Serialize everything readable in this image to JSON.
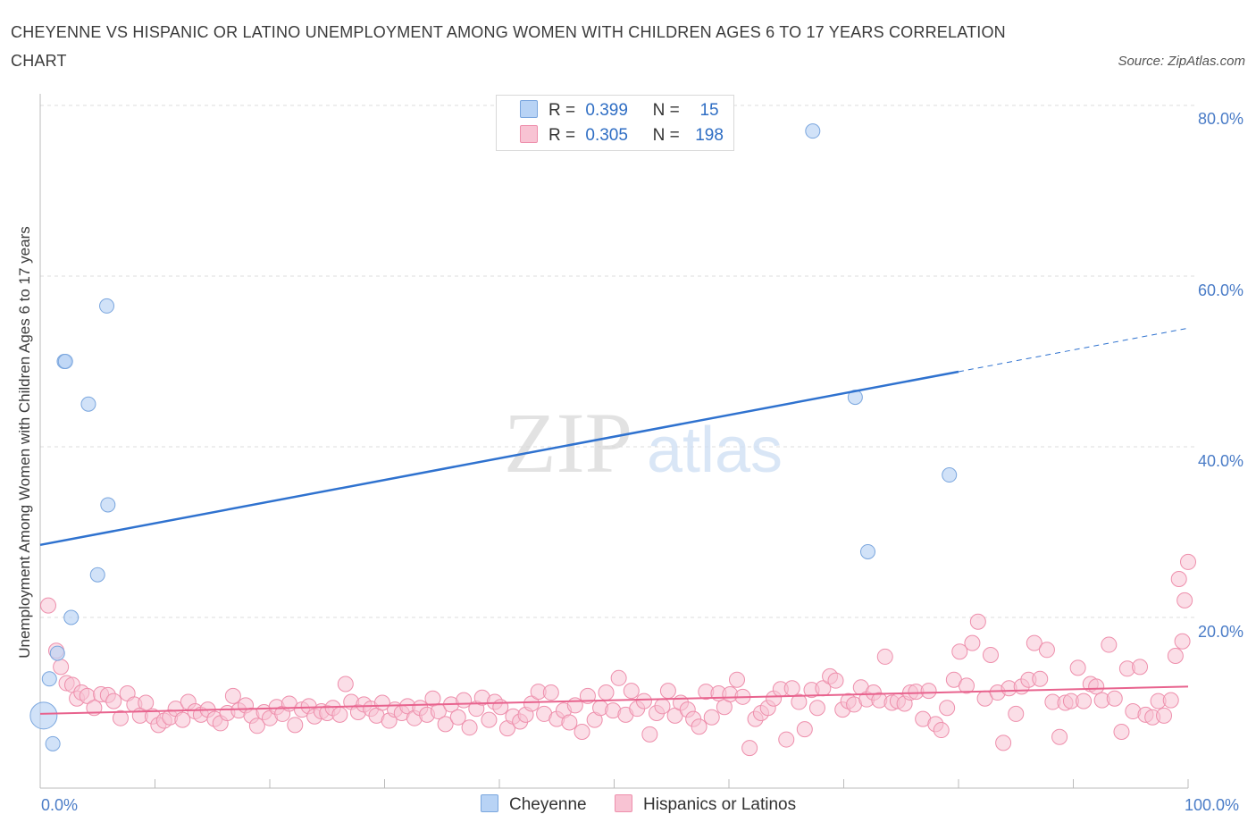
{
  "title": "CHEYENNE VS HISPANIC OR LATINO UNEMPLOYMENT AMONG WOMEN WITH CHILDREN AGES 6 TO 17 YEARS CORRELATION CHART",
  "source": "Source: ZipAtlas.com",
  "watermark": {
    "zip": "ZIP",
    "atlas": "atlas"
  },
  "legend": [
    {
      "r_label": "R =",
      "r_value": "0.399",
      "n_label": "N =",
      "n_value": "15"
    },
    {
      "r_label": "R =",
      "r_value": "0.305",
      "n_label": "N =",
      "n_value": "198"
    }
  ],
  "colors": {
    "cheyenne_fill": "#b8d3f5",
    "cheyenne_stroke": "#7aa6de",
    "cheyenne_line": "#2f72cf",
    "hispanic_fill": "#f8c3d3",
    "hispanic_stroke": "#ee8fac",
    "hispanic_line": "#e8638e",
    "axis_text": "#4a7cc7",
    "grid": "#dddddd"
  },
  "chart_data": {
    "type": "scatter",
    "title": "CHEYENNE VS HISPANIC OR LATINO UNEMPLOYMENT AMONG WOMEN WITH CHILDREN AGES 6 TO 17 YEARS CORRELATION CHART",
    "xlabel": "",
    "ylabel": "Unemployment Among Women with Children Ages 6 to 17 years",
    "xlim": [
      0,
      100
    ],
    "ylim": [
      0,
      80
    ],
    "x_ticks": [
      "0.0%",
      "100.0%"
    ],
    "y_ticks": [
      "20.0%",
      "40.0%",
      "60.0%",
      "80.0%"
    ],
    "y_tick_values": [
      20,
      40,
      60,
      80
    ],
    "grid": true,
    "legend_position": "top-center",
    "series": [
      {
        "name": "Cheyenne",
        "trend": {
          "x0": 0,
          "y0": 28.5,
          "x1": 80,
          "y1": 48.8,
          "dashed_to_x": 100,
          "dashed_to_y": 53.9
        },
        "points": [
          [
            0.3,
            8.5
          ],
          [
            1.1,
            5.2
          ],
          [
            0.8,
            12.8
          ],
          [
            1.5,
            15.8
          ],
          [
            2.1,
            50
          ],
          [
            2.2,
            50
          ],
          [
            2.7,
            20
          ],
          [
            4.2,
            45
          ],
          [
            5.0,
            25
          ],
          [
            5.8,
            56.5
          ],
          [
            5.9,
            33.2
          ],
          [
            67.3,
            77
          ],
          [
            71.0,
            45.8
          ],
          [
            72.1,
            27.7
          ],
          [
            79.2,
            36.7
          ]
        ]
      },
      {
        "name": "Hispanics or Latinos",
        "trend": {
          "x0": 0,
          "y0": 8.7,
          "x1": 100,
          "y1": 11.9
        },
        "points": [
          [
            0.7,
            21.4
          ],
          [
            1.4,
            16.1
          ],
          [
            1.8,
            14.2
          ],
          [
            2.3,
            12.3
          ],
          [
            2.8,
            12.1
          ],
          [
            3.2,
            10.5
          ],
          [
            3.6,
            11.2
          ],
          [
            4.1,
            10.8
          ],
          [
            4.7,
            9.4
          ],
          [
            5.3,
            11.0
          ],
          [
            5.9,
            10.9
          ],
          [
            6.4,
            10.2
          ],
          [
            7.0,
            8.2
          ],
          [
            7.6,
            11.1
          ],
          [
            8.2,
            9.8
          ],
          [
            8.7,
            8.5
          ],
          [
            9.2,
            10.0
          ],
          [
            9.8,
            8.4
          ],
          [
            10.3,
            7.4
          ],
          [
            10.8,
            7.9
          ],
          [
            11.3,
            8.3
          ],
          [
            11.8,
            9.3
          ],
          [
            12.4,
            8.0
          ],
          [
            12.9,
            10.1
          ],
          [
            13.5,
            9.0
          ],
          [
            14.0,
            8.6
          ],
          [
            14.6,
            9.2
          ],
          [
            15.2,
            8.1
          ],
          [
            15.7,
            7.6
          ],
          [
            16.3,
            8.8
          ],
          [
            16.8,
            10.8
          ],
          [
            17.3,
            9.1
          ],
          [
            17.9,
            9.7
          ],
          [
            18.4,
            8.5
          ],
          [
            18.9,
            7.3
          ],
          [
            19.5,
            8.9
          ],
          [
            20.0,
            8.2
          ],
          [
            20.6,
            9.5
          ],
          [
            21.1,
            8.7
          ],
          [
            21.7,
            9.9
          ],
          [
            22.2,
            7.4
          ],
          [
            22.8,
            9.2
          ],
          [
            23.4,
            9.6
          ],
          [
            23.9,
            8.4
          ],
          [
            24.5,
            9.0
          ],
          [
            25.0,
            8.8
          ],
          [
            25.5,
            9.4
          ],
          [
            26.1,
            8.6
          ],
          [
            26.6,
            12.2
          ],
          [
            27.1,
            10.1
          ],
          [
            27.7,
            8.9
          ],
          [
            28.2,
            9.8
          ],
          [
            28.8,
            9.3
          ],
          [
            29.3,
            8.5
          ],
          [
            29.8,
            10.0
          ],
          [
            30.4,
            7.9
          ],
          [
            30.9,
            9.2
          ],
          [
            31.5,
            8.8
          ],
          [
            32.0,
            9.6
          ],
          [
            32.6,
            8.2
          ],
          [
            33.1,
            9.4
          ],
          [
            33.7,
            8.6
          ],
          [
            34.2,
            10.5
          ],
          [
            34.7,
            9.0
          ],
          [
            35.3,
            7.5
          ],
          [
            35.8,
            9.8
          ],
          [
            36.4,
            8.3
          ],
          [
            36.9,
            10.3
          ],
          [
            37.4,
            7.1
          ],
          [
            38.0,
            9.3
          ],
          [
            38.5,
            10.6
          ],
          [
            39.1,
            8.0
          ],
          [
            39.6,
            10.1
          ],
          [
            40.1,
            9.5
          ],
          [
            40.7,
            7.0
          ],
          [
            41.2,
            8.4
          ],
          [
            41.8,
            7.8
          ],
          [
            42.3,
            8.6
          ],
          [
            42.8,
            9.9
          ],
          [
            43.4,
            11.3
          ],
          [
            43.9,
            8.7
          ],
          [
            44.5,
            11.2
          ],
          [
            45.0,
            8.1
          ],
          [
            45.6,
            9.1
          ],
          [
            46.1,
            7.7
          ],
          [
            46.6,
            9.7
          ],
          [
            47.2,
            6.6
          ],
          [
            47.7,
            10.8
          ],
          [
            48.3,
            8.0
          ],
          [
            48.8,
            9.4
          ],
          [
            49.3,
            11.2
          ],
          [
            49.9,
            9.1
          ],
          [
            50.4,
            12.9
          ],
          [
            51.0,
            8.6
          ],
          [
            51.5,
            11.4
          ],
          [
            52.0,
            9.3
          ],
          [
            52.6,
            10.2
          ],
          [
            53.1,
            6.3
          ],
          [
            53.7,
            8.8
          ],
          [
            54.2,
            9.6
          ],
          [
            54.7,
            11.4
          ],
          [
            55.3,
            8.5
          ],
          [
            55.8,
            10.0
          ],
          [
            56.4,
            9.2
          ],
          [
            56.9,
            8.1
          ],
          [
            57.4,
            7.2
          ],
          [
            58.0,
            11.3
          ],
          [
            58.5,
            8.3
          ],
          [
            59.1,
            11.1
          ],
          [
            59.6,
            9.5
          ],
          [
            60.1,
            11.0
          ],
          [
            60.7,
            12.7
          ],
          [
            61.2,
            10.7
          ],
          [
            61.8,
            4.7
          ],
          [
            62.3,
            8.1
          ],
          [
            62.8,
            8.8
          ],
          [
            63.4,
            9.4
          ],
          [
            63.9,
            10.5
          ],
          [
            64.5,
            11.6
          ],
          [
            65.0,
            5.7
          ],
          [
            65.5,
            11.7
          ],
          [
            66.1,
            10.1
          ],
          [
            66.6,
            6.9
          ],
          [
            67.2,
            11.5
          ],
          [
            67.7,
            9.4
          ],
          [
            68.2,
            11.7
          ],
          [
            68.8,
            13.1
          ],
          [
            69.3,
            12.6
          ],
          [
            69.9,
            9.2
          ],
          [
            70.4,
            10.2
          ],
          [
            70.9,
            9.8
          ],
          [
            71.5,
            11.8
          ],
          [
            72.0,
            10.4
          ],
          [
            72.6,
            11.2
          ],
          [
            73.1,
            10.3
          ],
          [
            73.6,
            15.4
          ],
          [
            74.2,
            10.0
          ],
          [
            74.7,
            10.2
          ],
          [
            75.3,
            9.9
          ],
          [
            75.8,
            11.2
          ],
          [
            76.3,
            11.3
          ],
          [
            76.9,
            8.1
          ],
          [
            77.4,
            11.4
          ],
          [
            78.0,
            7.5
          ],
          [
            78.5,
            6.8
          ],
          [
            79.0,
            9.4
          ],
          [
            79.6,
            12.7
          ],
          [
            80.1,
            16.0
          ],
          [
            80.7,
            12.0
          ],
          [
            81.2,
            17.0
          ],
          [
            81.7,
            19.5
          ],
          [
            82.3,
            10.5
          ],
          [
            82.8,
            15.6
          ],
          [
            83.4,
            11.2
          ],
          [
            83.9,
            5.3
          ],
          [
            84.4,
            11.7
          ],
          [
            85.0,
            8.7
          ],
          [
            85.5,
            11.9
          ],
          [
            86.1,
            12.7
          ],
          [
            86.6,
            17.0
          ],
          [
            87.1,
            12.8
          ],
          [
            87.7,
            16.2
          ],
          [
            88.2,
            10.1
          ],
          [
            88.8,
            6.0
          ],
          [
            89.3,
            10.0
          ],
          [
            89.8,
            10.2
          ],
          [
            90.4,
            14.1
          ],
          [
            90.9,
            10.2
          ],
          [
            91.5,
            12.2
          ],
          [
            92.0,
            11.9
          ],
          [
            92.5,
            10.3
          ],
          [
            93.1,
            16.8
          ],
          [
            93.6,
            10.5
          ],
          [
            94.2,
            6.6
          ],
          [
            94.7,
            14.0
          ],
          [
            95.2,
            9.0
          ],
          [
            95.8,
            14.2
          ],
          [
            96.3,
            8.6
          ],
          [
            96.9,
            8.3
          ],
          [
            97.4,
            10.2
          ],
          [
            97.9,
            8.5
          ],
          [
            98.5,
            10.3
          ],
          [
            98.9,
            15.5
          ],
          [
            99.2,
            24.5
          ],
          [
            99.5,
            17.2
          ],
          [
            99.7,
            22.0
          ],
          [
            100.0,
            26.5
          ]
        ]
      }
    ]
  },
  "bottom_legend": [
    "Cheyenne",
    "Hispanics or Latinos"
  ]
}
